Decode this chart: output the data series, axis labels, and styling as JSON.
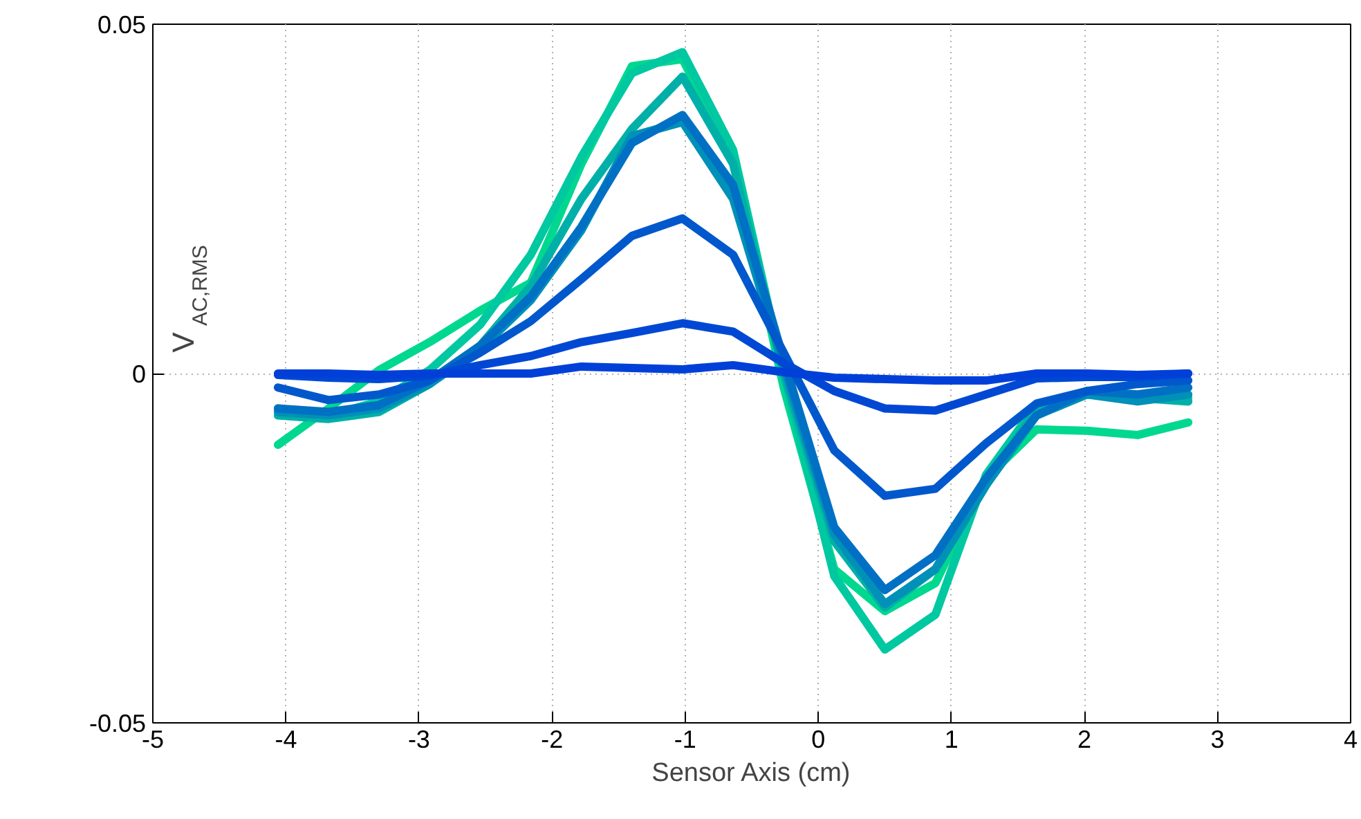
{
  "chart_data": {
    "type": "line",
    "xlabel": "Sensor Axis (cm)",
    "ylabel": "V$_{AC,RMS}$",
    "x": [
      -4.06,
      -3.68,
      -3.3,
      -2.92,
      -2.54,
      -2.16,
      -1.78,
      -1.4,
      -1.02,
      -0.64,
      -0.26,
      0.12,
      0.5,
      0.88,
      1.26,
      1.64,
      2.02,
      2.4,
      2.78
    ],
    "xlim": [
      -5,
      4
    ],
    "xticks": [
      -5,
      -4,
      -3,
      -2,
      -1,
      0,
      1,
      2,
      3,
      4
    ],
    "ylim": [
      -0.05,
      0.05
    ],
    "yticks": [
      -0.05,
      0,
      0.05
    ],
    "grid": true,
    "line_style": "solid",
    "marker": "none",
    "series": [
      {
        "color": "#00d890",
        "values": [
          -0.0102,
          -0.005,
          0.0005,
          0.0045,
          0.009,
          0.013,
          0.03,
          0.044,
          0.045,
          0.031,
          -0.002,
          -0.028,
          -0.034,
          -0.03,
          -0.015,
          -0.008,
          -0.0082,
          -0.0088,
          -0.007
        ]
      },
      {
        "color": "#00c8a0",
        "values": [
          -0.005,
          -0.006,
          -0.004,
          0.0005,
          0.007,
          0.017,
          0.031,
          0.043,
          0.046,
          0.032,
          0.0,
          -0.029,
          -0.0395,
          -0.0345,
          -0.0145,
          -0.0045,
          -0.003,
          -0.0035,
          -0.0035
        ]
      },
      {
        "color": "#00b0a8",
        "values": [
          -0.006,
          -0.0065,
          -0.0055,
          -0.0015,
          0.004,
          0.0125,
          0.025,
          0.035,
          0.0425,
          0.03,
          0.0,
          -0.024,
          -0.0335,
          -0.028,
          -0.016,
          -0.005,
          -0.0025,
          -0.0035,
          -0.004
        ]
      },
      {
        "color": "#0090b8",
        "values": [
          -0.0055,
          -0.006,
          -0.005,
          -0.0015,
          0.0035,
          0.0105,
          0.0205,
          0.034,
          0.036,
          0.025,
          0.001,
          -0.023,
          -0.033,
          -0.028,
          -0.016,
          -0.006,
          -0.003,
          -0.004,
          -0.003
        ]
      },
      {
        "color": "#0070c4",
        "values": [
          -0.005,
          -0.0055,
          -0.0045,
          -0.001,
          0.004,
          0.011,
          0.021,
          0.033,
          0.037,
          0.027,
          0.002,
          -0.022,
          -0.031,
          -0.026,
          -0.015,
          -0.006,
          -0.0025,
          -0.003,
          -0.002
        ]
      },
      {
        "color": "#0058cc",
        "values": [
          -0.002,
          -0.0038,
          -0.003,
          -0.001,
          0.003,
          0.0075,
          0.0135,
          0.0197,
          0.0222,
          0.017,
          0.003,
          -0.011,
          -0.0175,
          -0.0165,
          -0.01,
          -0.0043,
          -0.0025,
          -0.0015,
          -0.001
        ]
      },
      {
        "color": "#0048d4",
        "values": [
          -0.0002,
          -0.0006,
          -0.0008,
          -0.0003,
          0.0012,
          0.0025,
          0.0045,
          0.0058,
          0.0072,
          0.006,
          0.0015,
          -0.0025,
          -0.005,
          -0.0053,
          -0.003,
          -0.0007,
          -0.0005,
          -0.0005,
          0.0
        ]
      },
      {
        "color": "#0040d8",
        "values": [
          0.0,
          0.0,
          -0.0002,
          0.0,
          0.0,
          0.0,
          0.001,
          0.0008,
          0.0006,
          0.0012,
          0.0002,
          -0.0006,
          -0.0008,
          -0.001,
          -0.001,
          0.0,
          0.0,
          -0.0002,
          0.0
        ]
      }
    ]
  }
}
